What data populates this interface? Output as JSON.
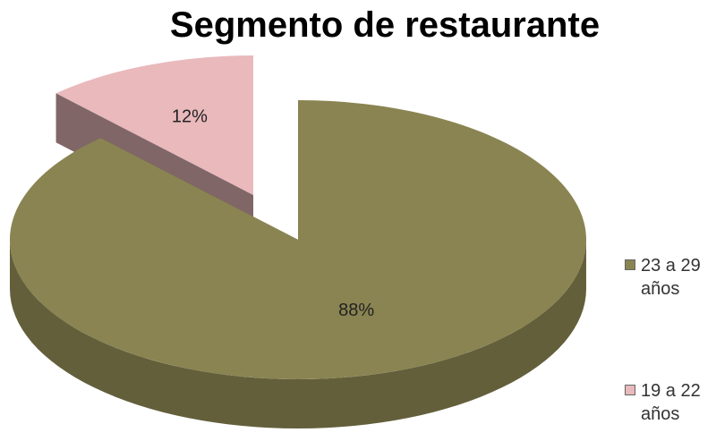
{
  "chart_data": {
    "type": "pie",
    "title": "Segmento de restaurante",
    "categories": [
      "23 a 29 años",
      "19 a 22 años"
    ],
    "values": [
      88,
      12
    ],
    "value_labels": [
      "88%",
      "12%"
    ],
    "colors": [
      "#8a8452",
      "#e9b9bc"
    ],
    "legend": "right"
  }
}
